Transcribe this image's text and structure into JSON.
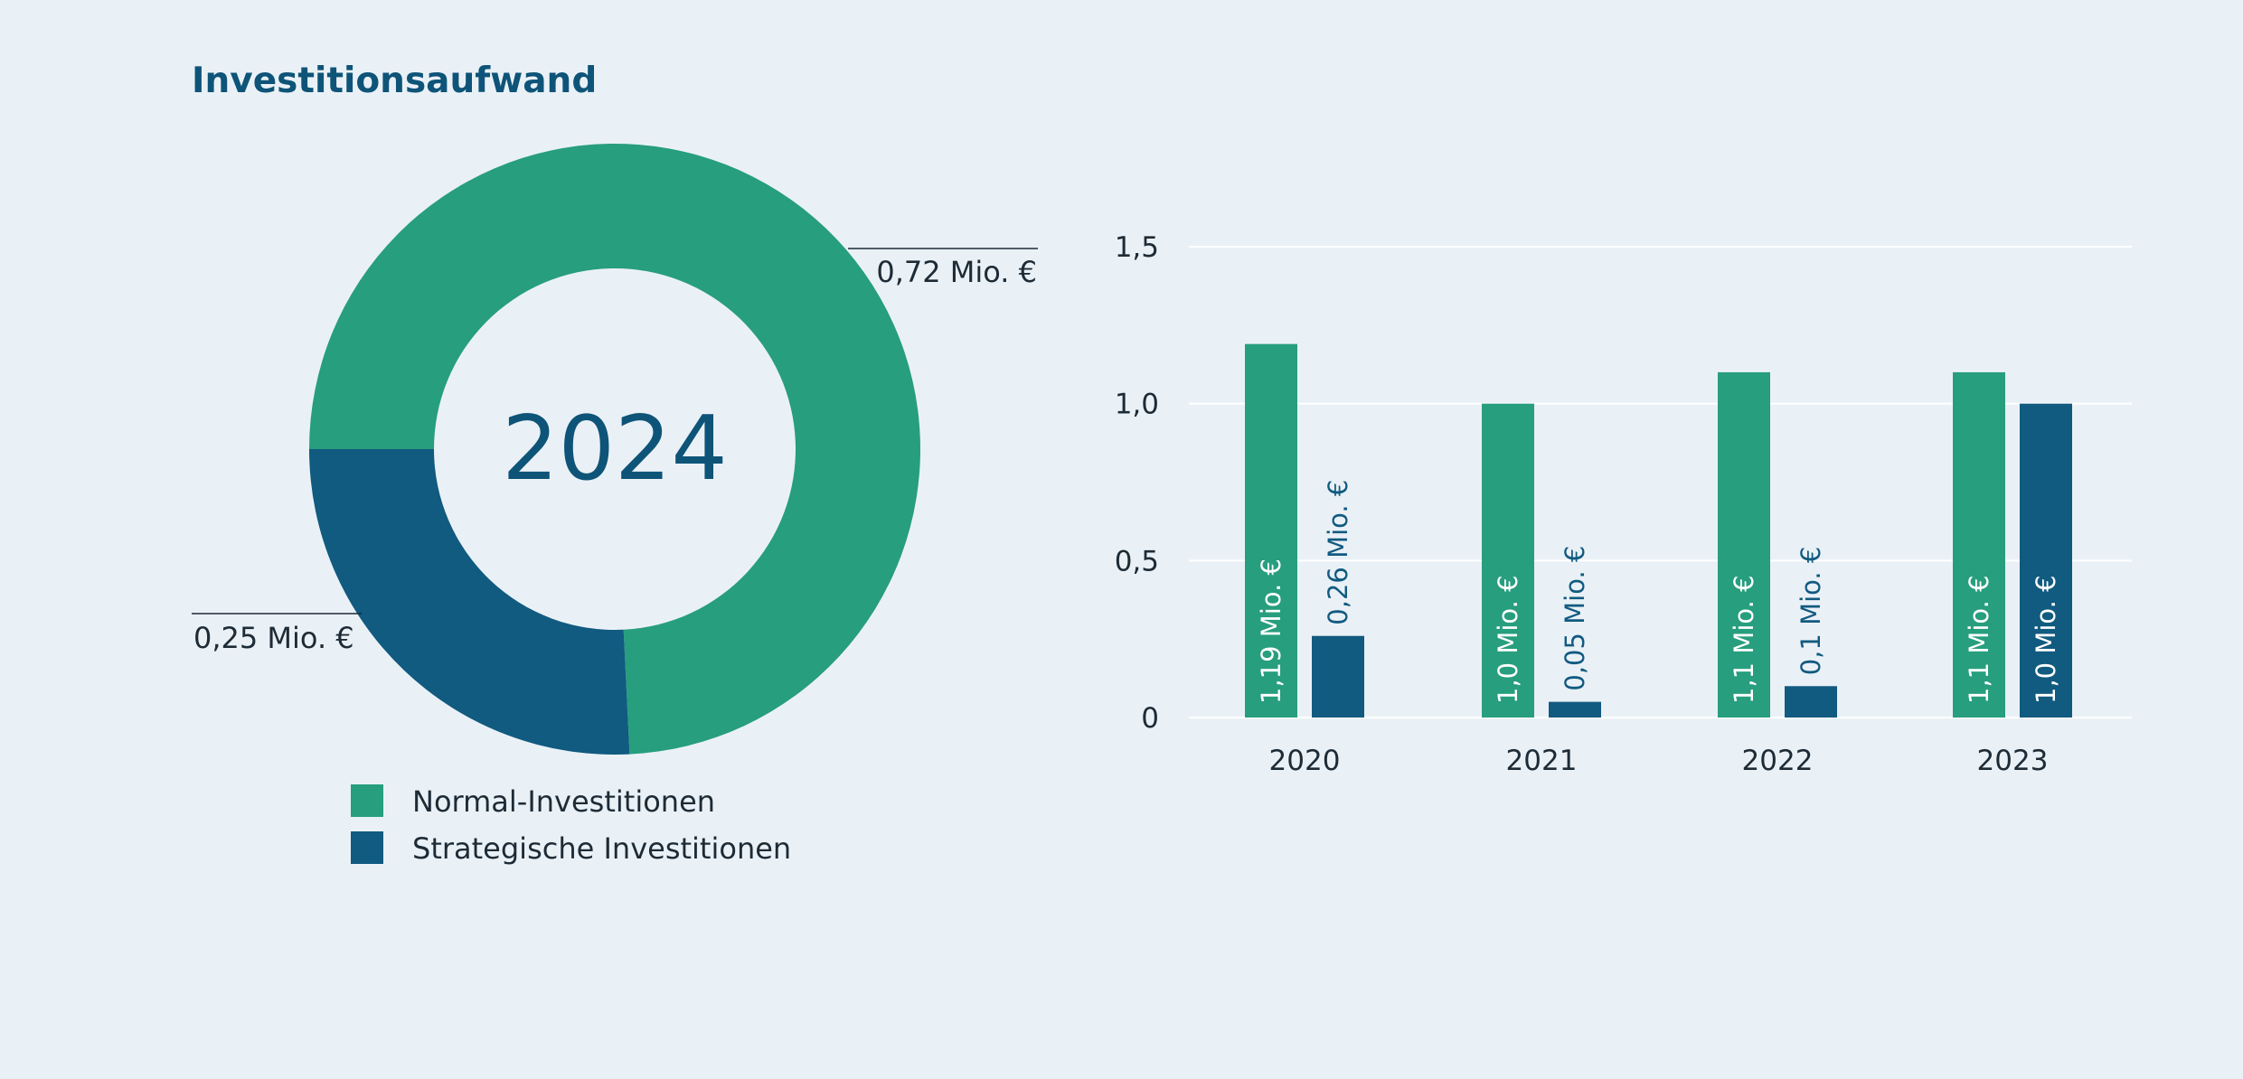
{
  "title": "Investitionsaufwand",
  "colors": {
    "normal": "#279e7e",
    "strategic": "#115a80",
    "title": "#0e5478",
    "grid": "#ffffff",
    "background": "#eaf1f6",
    "text": "#1d2b36"
  },
  "legend": [
    {
      "label": "Normal-Investitionen",
      "color_key": "normal"
    },
    {
      "label": "Strategische Investitionen",
      "color_key": "strategic"
    }
  ],
  "chart_data": [
    {
      "type": "pie",
      "variant": "donut",
      "center_label": "2024",
      "slices": [
        {
          "name": "Normal-Investitionen",
          "value": 0.72,
          "label": "0,72 Mio. €"
        },
        {
          "name": "Strategische Investitionen",
          "value": 0.25,
          "label": "0,25 Mio. €"
        }
      ]
    },
    {
      "type": "bar",
      "categories": [
        "2020",
        "2021",
        "2022",
        "2023"
      ],
      "series": [
        {
          "name": "Normal-Investitionen",
          "values": [
            1.19,
            1.0,
            1.1,
            1.1
          ],
          "labels": [
            "1,19 Mio. €",
            "1,0 Mio. €",
            "1,1 Mio. €",
            "1,1 Mio. €"
          ]
        },
        {
          "name": "Strategische Investitionen",
          "values": [
            0.26,
            0.05,
            0.1,
            1.0
          ],
          "labels": [
            "0,26 Mio. €",
            "0,05 Mio. €",
            "0,1 Mio. €",
            "1,0 Mio. €"
          ]
        }
      ],
      "yticks": [
        0,
        0.5,
        1.0,
        1.5
      ],
      "ytick_labels": [
        "0",
        "0,5",
        "1,0",
        "1,5"
      ],
      "ylim": [
        0,
        1.5
      ],
      "grid": true
    }
  ]
}
